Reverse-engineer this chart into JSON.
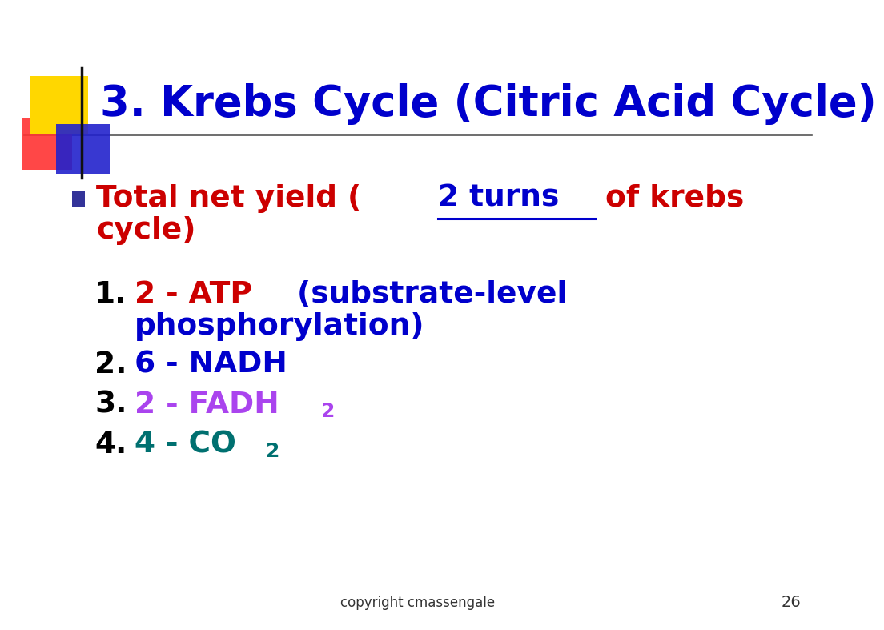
{
  "title": "3. Krebs Cycle (Citric Acid Cycle)",
  "title_color": "#0000CC",
  "title_fontsize": 38,
  "background_color": "#FFFFFF",
  "slide_number": "26",
  "copyright_text": "copyright cmassengale",
  "bullet_color": "#333399"
}
